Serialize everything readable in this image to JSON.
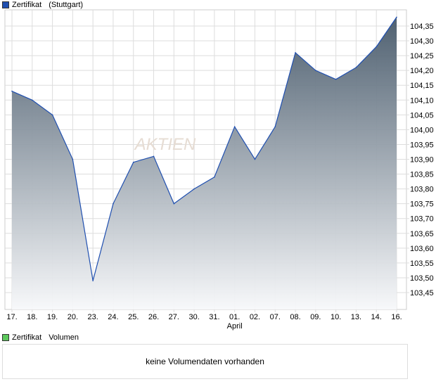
{
  "legend": {
    "series": "Zertifikat",
    "exchange": "(Stuttgart)",
    "color": "#1f4fb0"
  },
  "volume": {
    "legend_series": "Zertifikat",
    "legend_label": "Volumen",
    "legend_color": "#5cc85c",
    "empty_message": "keine Volumendaten vorhanden"
  },
  "watermark": "AKTIEN",
  "chart_data": {
    "type": "area",
    "title": "",
    "x": [
      "17.",
      "18.",
      "19.",
      "20.",
      "23.",
      "24.",
      "25.",
      "26.",
      "27.",
      "30.",
      "31.",
      "01.",
      "02.",
      "07.",
      "08.",
      "09.",
      "10.",
      "13.",
      "14.",
      "16."
    ],
    "month_label": {
      "at": "01.",
      "text": "April"
    },
    "series": [
      {
        "name": "Zertifikat",
        "values": [
          104.13,
          104.1,
          104.05,
          103.9,
          103.49,
          103.75,
          103.89,
          103.91,
          103.75,
          103.8,
          103.84,
          104.01,
          103.9,
          104.01,
          104.26,
          104.2,
          104.17,
          104.21,
          104.28,
          104.38
        ]
      }
    ],
    "yticks": [
      "103,45",
      "103,50",
      "103,55",
      "103,60",
      "103,65",
      "103,70",
      "103,75",
      "103,80",
      "103,85",
      "103,90",
      "103,95",
      "104,00",
      "104,05",
      "104,10",
      "104,15",
      "104,20",
      "104,25",
      "104,30",
      "104,35"
    ],
    "ylim": [
      103.4,
      104.39
    ],
    "grid": true,
    "legend": "top-left"
  }
}
